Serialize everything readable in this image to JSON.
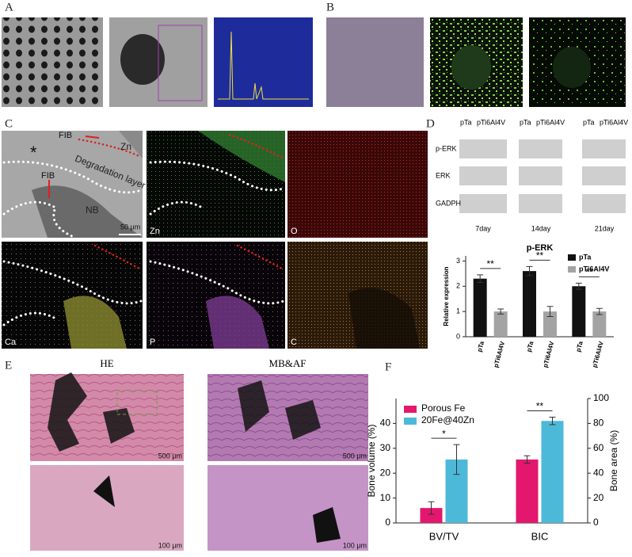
{
  "figure": {
    "panel_labels": [
      "A",
      "B",
      "C",
      "D",
      "E",
      "F"
    ],
    "panel_c": {
      "fib_top": "FIB",
      "fib_mid": "FIB",
      "asterisk": "*",
      "zn_label": "Zn",
      "degradation": "Degradation layer",
      "nb": "NB",
      "scale": "50 μm",
      "maps": [
        "Zn",
        "O",
        "Ca",
        "P",
        "C"
      ]
    },
    "panel_d_blot": {
      "rows": [
        "p-ERK",
        "ERK",
        "GADPH"
      ],
      "days": [
        "7day",
        "14day",
        "21day"
      ]
    },
    "panel_e": {
      "stains": [
        "HE",
        "MB&AF"
      ],
      "scales": [
        "500 μm",
        "500 μm",
        "100 μm",
        "100 μm"
      ]
    }
  },
  "chart_data": [
    {
      "type": "bar",
      "title": "p-ERK",
      "ylabel": "Relative expression",
      "categories": [
        null,
        null,
        null
      ],
      "series": [
        {
          "name": "pTa",
          "color": "#111111",
          "values": [
            2.3,
            2.6,
            2.0
          ],
          "errors": [
            0.15,
            0.18,
            0.12
          ]
        },
        {
          "name": "pTi6Al4V",
          "color": "#a3a3a3",
          "values": [
            1.0,
            1.0,
            1.0
          ],
          "errors": [
            0.1,
            0.2,
            0.12
          ]
        }
      ],
      "ylim": [
        0,
        3.2
      ],
      "yticks": [
        0,
        1,
        2,
        3
      ],
      "significance": [
        "**",
        "**",
        "**"
      ],
      "legend": "upper right"
    },
    {
      "type": "bar",
      "ylabel": "Bone volume (%)",
      "y2label": "Bone area (%)",
      "categories": [
        "BV/TV",
        "BIC"
      ],
      "category_axes": [
        "y",
        "y2"
      ],
      "series": [
        {
          "name": "Porous Fe",
          "color": "#e3176d",
          "values": [
            6,
            51
          ],
          "errors": [
            2.5,
            3
          ]
        },
        {
          "name": "20Fe@40Zn",
          "color": "#4db9d9",
          "values": [
            25.5,
            82
          ],
          "errors": [
            6,
            3
          ]
        }
      ],
      "ylim": [
        0,
        50
      ],
      "yticks": [
        0,
        10,
        20,
        30,
        40
      ],
      "y2lim": [
        0,
        100
      ],
      "y2ticks": [
        0,
        20,
        40,
        60,
        80,
        100
      ],
      "significance": [
        "*",
        "**"
      ],
      "legend": "upper left"
    }
  ]
}
